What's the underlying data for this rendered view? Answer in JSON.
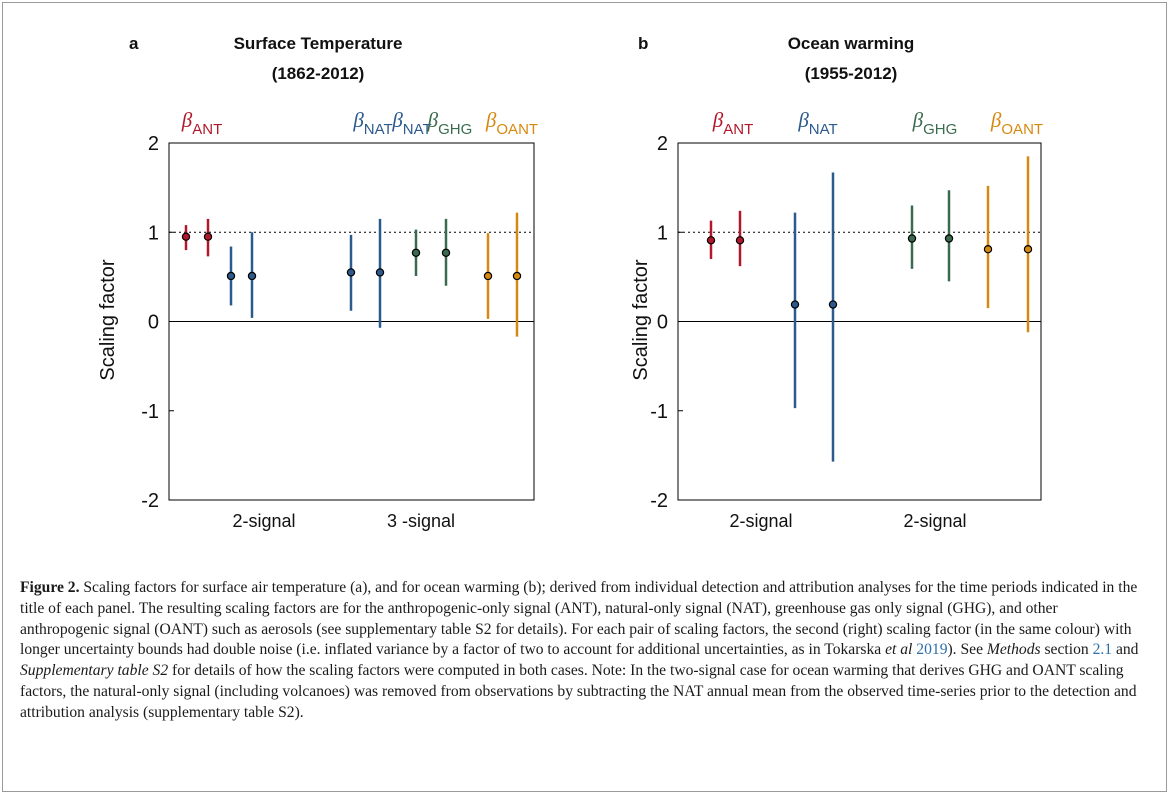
{
  "chart_data": [
    {
      "type": "errorbar",
      "panel_letter": "a",
      "title": "Surface Temperature",
      "subtitle": "(1862-2012)",
      "ylabel": "Scaling factor",
      "ylim": [
        -2,
        2
      ],
      "yticks": [
        -2,
        -1,
        0,
        1,
        2
      ],
      "reference_line": 1,
      "zero_line": 0,
      "group_labels": [
        "2-signal",
        "3 -signal"
      ],
      "series_labels": [
        {
          "symbol": "β",
          "sub": "ANT",
          "color": "#b2182b"
        },
        {
          "symbol": "β",
          "sub": "NAT",
          "color": "#2c5a8c"
        },
        {
          "symbol": "β",
          "sub": "NAT",
          "color": "#2c5a8c"
        },
        {
          "symbol": "β",
          "sub": "GHG",
          "color": "#3b6b4e"
        },
        {
          "symbol": "β",
          "sub": "OANT",
          "color": "#d68910"
        }
      ],
      "series": [
        {
          "name": "ANT",
          "group": "2-signal",
          "color": "#b2182b",
          "noise": "single",
          "best": 0.95,
          "low": 0.8,
          "high": 1.08
        },
        {
          "name": "ANT",
          "group": "2-signal",
          "color": "#b2182b",
          "noise": "double",
          "best": 0.95,
          "low": 0.73,
          "high": 1.15
        },
        {
          "name": "NAT",
          "group": "2-signal",
          "color": "#2c5a8c",
          "noise": "single",
          "best": 0.51,
          "low": 0.18,
          "high": 0.84
        },
        {
          "name": "NAT",
          "group": "2-signal",
          "color": "#2c5a8c",
          "noise": "double",
          "best": 0.51,
          "low": 0.04,
          "high": 1.0
        },
        {
          "name": "NAT",
          "group": "3 -signal",
          "color": "#2c5a8c",
          "noise": "single",
          "best": 0.55,
          "low": 0.12,
          "high": 0.97
        },
        {
          "name": "NAT",
          "group": "3 -signal",
          "color": "#2c5a8c",
          "noise": "double",
          "best": 0.55,
          "low": -0.07,
          "high": 1.15
        },
        {
          "name": "GHG",
          "group": "3 -signal",
          "color": "#3b6b4e",
          "noise": "single",
          "best": 0.77,
          "low": 0.51,
          "high": 1.03
        },
        {
          "name": "GHG",
          "group": "3 -signal",
          "color": "#3b6b4e",
          "noise": "double",
          "best": 0.77,
          "low": 0.4,
          "high": 1.15
        },
        {
          "name": "OANT",
          "group": "3 -signal",
          "color": "#d68910",
          "noise": "single",
          "best": 0.51,
          "low": 0.03,
          "high": 0.99
        },
        {
          "name": "OANT",
          "group": "3 -signal",
          "color": "#d68910",
          "noise": "double",
          "best": 0.51,
          "low": -0.17,
          "high": 1.22
        }
      ]
    },
    {
      "type": "errorbar",
      "panel_letter": "b",
      "title": "Ocean warming",
      "subtitle": "(1955-2012)",
      "ylabel": "Scaling factor",
      "ylim": [
        -2,
        2
      ],
      "yticks": [
        -2,
        -1,
        0,
        1,
        2
      ],
      "reference_line": 1,
      "zero_line": 0,
      "group_labels": [
        "2-signal",
        "2-signal"
      ],
      "series_labels": [
        {
          "symbol": "β",
          "sub": "ANT",
          "color": "#b2182b"
        },
        {
          "symbol": "β",
          "sub": "NAT",
          "color": "#2c5a8c"
        },
        {
          "symbol": "β",
          "sub": "GHG",
          "color": "#3b6b4e"
        },
        {
          "symbol": "β",
          "sub": "OANT",
          "color": "#d68910"
        }
      ],
      "series": [
        {
          "name": "ANT",
          "group": "2-signal (ANT/NAT)",
          "color": "#b2182b",
          "noise": "single",
          "best": 0.91,
          "low": 0.7,
          "high": 1.13
        },
        {
          "name": "ANT",
          "group": "2-signal (ANT/NAT)",
          "color": "#b2182b",
          "noise": "double",
          "best": 0.91,
          "low": 0.62,
          "high": 1.24
        },
        {
          "name": "NAT",
          "group": "2-signal (ANT/NAT)",
          "color": "#2c5a8c",
          "noise": "single",
          "best": 0.19,
          "low": -0.97,
          "high": 1.22
        },
        {
          "name": "NAT",
          "group": "2-signal (ANT/NAT)",
          "color": "#2c5a8c",
          "noise": "double",
          "best": 0.19,
          "low": -1.57,
          "high": 1.67
        },
        {
          "name": "GHG",
          "group": "2-signal (GHG/OANT)",
          "color": "#3b6b4e",
          "noise": "single",
          "best": 0.93,
          "low": 0.59,
          "high": 1.3
        },
        {
          "name": "GHG",
          "group": "2-signal (GHG/OANT)",
          "color": "#3b6b4e",
          "noise": "double",
          "best": 0.93,
          "low": 0.45,
          "high": 1.47
        },
        {
          "name": "OANT",
          "group": "2-signal (GHG/OANT)",
          "color": "#d68910",
          "noise": "single",
          "best": 0.81,
          "low": 0.15,
          "high": 1.52
        },
        {
          "name": "OANT",
          "group": "2-signal (GHG/OANT)",
          "color": "#d68910",
          "noise": "double",
          "best": 0.81,
          "low": -0.12,
          "high": 1.85
        }
      ]
    }
  ],
  "caption": {
    "label": "Figure 2.",
    "part1": " Scaling factors for surface air temperature (a), and for ocean warming (b); derived from individual detection and attribution analyses for the time periods indicated in the title of each panel. The resulting scaling factors are for the anthropogenic-only signal (ANT), natural-only signal (NAT), greenhouse gas only signal (GHG), and other anthropogenic signal (OANT) such as aerosols (see supplementary table S2 for details). For each pair of scaling factors, the second (right) scaling factor (in the same colour) with longer uncertainty bounds had double noise (i.e. inflated variance by a factor of two to account for additional uncertainties, as in Tokarska ",
    "etal": "et al",
    "year": "2019",
    "part2": "). See ",
    "methods": "Methods",
    "part3": " section ",
    "section": "2.1",
    "part4": " and ",
    "supp": "Supplementary table S2",
    "part5": " for details of how the scaling factors were computed in both cases. Note: In the two-signal case for ocean warming that derives GHG and OANT scaling factors, the natural-only signal (including volcanoes) was removed from observations by subtracting the NAT annual mean from the observed time-series prior to the detection and attribution analysis (supplementary table S2)."
  }
}
